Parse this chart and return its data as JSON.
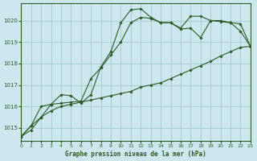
{
  "title": "Graphe pression niveau de la mer (hPa)",
  "bg_color": "#cce8ee",
  "grid_color": "#9dc4c8",
  "line_color": "#2d5a27",
  "x_min": 0,
  "x_max": 23,
  "y_min": 1014.4,
  "y_max": 1020.8,
  "y_ticks": [
    1015,
    1016,
    1017,
    1018,
    1019,
    1020
  ],
  "x_ticks": [
    0,
    1,
    2,
    3,
    4,
    5,
    6,
    7,
    8,
    9,
    10,
    11,
    12,
    13,
    14,
    15,
    16,
    17,
    18,
    19,
    20,
    21,
    22,
    23
  ],
  "series": [
    {
      "x": [
        0,
        1,
        2,
        3,
        4,
        5,
        6,
        7,
        8,
        9,
        10,
        11,
        12,
        13,
        14,
        15,
        16,
        17,
        18,
        19,
        20,
        21,
        22,
        23
      ],
      "y": [
        1014.6,
        1014.9,
        1015.5,
        1015.8,
        1016.0,
        1016.1,
        1016.2,
        1016.3,
        1016.4,
        1016.5,
        1016.6,
        1016.7,
        1016.9,
        1017.0,
        1017.1,
        1017.3,
        1017.5,
        1017.7,
        1017.9,
        1018.1,
        1018.35,
        1018.55,
        1018.75,
        1018.8
      ]
    },
    {
      "x": [
        0,
        1,
        2,
        3,
        4,
        5,
        6,
        7,
        8,
        9,
        10,
        11,
        12,
        13,
        14,
        15,
        16,
        17,
        18,
        19,
        20,
        21,
        22,
        23
      ],
      "y": [
        1014.6,
        1015.1,
        1015.5,
        1016.1,
        1016.15,
        1016.2,
        1016.25,
        1017.3,
        1017.8,
        1018.4,
        1019.0,
        1019.9,
        1020.15,
        1020.1,
        1019.9,
        1019.9,
        1019.6,
        1019.65,
        1019.2,
        1020.0,
        1020.0,
        1019.9,
        1019.85,
        1018.8
      ]
    },
    {
      "x": [
        0,
        1,
        2,
        3,
        4,
        5,
        6,
        7,
        8,
        9,
        10,
        11,
        12,
        13,
        14,
        15,
        16,
        17,
        18,
        19,
        20,
        21,
        22,
        23
      ],
      "y": [
        1014.6,
        1015.1,
        1016.0,
        1016.1,
        1016.55,
        1016.5,
        1016.15,
        1016.55,
        1017.85,
        1018.55,
        1019.9,
        1020.5,
        1020.55,
        1020.15,
        1019.9,
        1019.9,
        1019.65,
        1020.2,
        1020.2,
        1020.0,
        1019.95,
        1019.9,
        1019.5,
        1018.8
      ]
    }
  ]
}
